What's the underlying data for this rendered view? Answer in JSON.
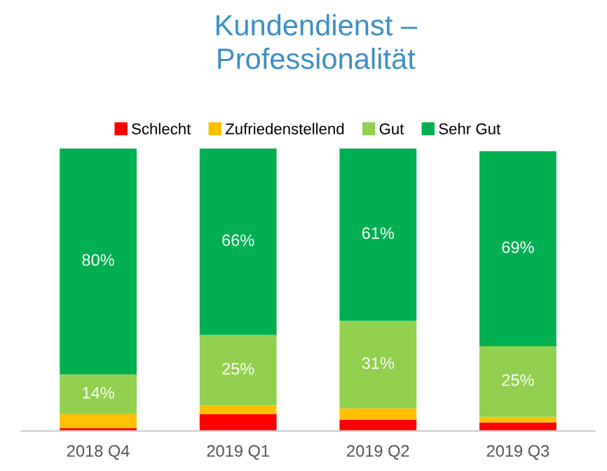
{
  "chart_data": {
    "type": "bar",
    "stacked": true,
    "title": "Kundendienst –\nProfessionalität",
    "categories": [
      "2018 Q4",
      "2019 Q1",
      "2019 Q2",
      "2019 Q3"
    ],
    "series": [
      {
        "name": "Schlecht",
        "color": "#ff0000",
        "values": [
          1,
          6,
          4,
          3
        ]
      },
      {
        "name": "Zufriedenstellend",
        "color": "#ffc000",
        "values": [
          5,
          3,
          4,
          2
        ]
      },
      {
        "name": "Gut",
        "color": "#92d050",
        "values": [
          14,
          25,
          31,
          25
        ],
        "value_labels": [
          "14%",
          "25%",
          "31%",
          "25%"
        ]
      },
      {
        "name": "Sehr Gut",
        "color": "#00b050",
        "values": [
          80,
          66,
          61,
          69
        ],
        "value_labels": [
          "80%",
          "66%",
          "61%",
          "69%"
        ]
      }
    ],
    "legend": "top",
    "grid": false,
    "tick_labels": "x"
  }
}
